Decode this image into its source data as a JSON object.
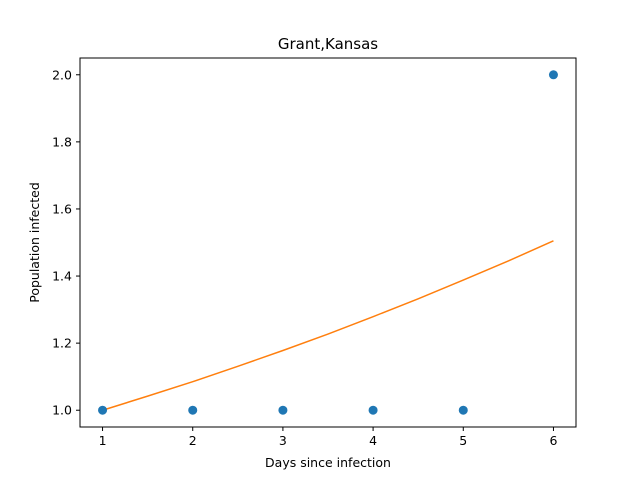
{
  "chart_data": {
    "type": "scatter",
    "title": "Grant,Kansas",
    "xlabel": "Days since infection",
    "ylabel": "Population infected",
    "xlim": [
      0.75,
      6.25
    ],
    "ylim": [
      0.95,
      2.05
    ],
    "x_ticks": [
      1,
      2,
      3,
      4,
      5,
      6
    ],
    "x_tick_labels": [
      "1",
      "2",
      "3",
      "4",
      "5",
      "6"
    ],
    "y_ticks": [
      1.0,
      1.2,
      1.4,
      1.6,
      1.8,
      2.0
    ],
    "y_tick_labels": [
      "1.0",
      "1.2",
      "1.4",
      "1.6",
      "1.8",
      "2.0"
    ],
    "grid": false,
    "legend": "none",
    "series": [
      {
        "kind": "scatter",
        "color": "#1f77b4",
        "x": [
          1,
          2,
          3,
          4,
          5,
          6
        ],
        "y": [
          1,
          1,
          1,
          1,
          1,
          2
        ]
      },
      {
        "kind": "line",
        "color": "#ff7f0e",
        "x": [
          1,
          1.5,
          2,
          2.5,
          3,
          3.5,
          4,
          4.5,
          5,
          5.5,
          6
        ],
        "y": [
          1.0,
          1.042,
          1.085,
          1.131,
          1.178,
          1.227,
          1.279,
          1.332,
          1.388,
          1.445,
          1.505
        ]
      }
    ]
  }
}
